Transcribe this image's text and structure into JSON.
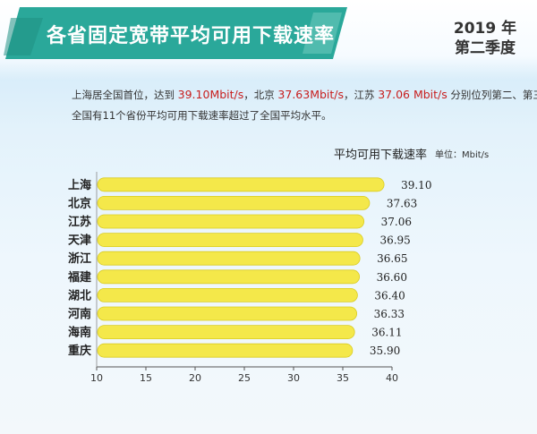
{
  "header": {
    "title": "各省固定宽带平均可用下载速率",
    "year": "2019 年",
    "quarter": "第二季度"
  },
  "description": {
    "line1_a": "上海居全国首位，达到 ",
    "line1_b": "39.10Mbit/s",
    "line1_c": "，北京 ",
    "line1_d": "37.63Mbit/s",
    "line1_e": "，江苏 ",
    "line1_f": "37.06 Mbit/s",
    "line1_g": " 分别位列第二、第三",
    "line2": "全国有11个省份平均可用下载速率超过了全国平均水平。"
  },
  "legend": {
    "label": "平均可用下载速率",
    "unit": "单位：Mbit/s"
  },
  "colors": {
    "banner": "#2aa89a",
    "bar": "#f4e84a",
    "bar_outline": "#d9cc22",
    "accent_red": "#c81e1e"
  },
  "chart_data": {
    "type": "bar",
    "orientation": "horizontal",
    "categories": [
      "上海",
      "北京",
      "江苏",
      "天津",
      "浙江",
      "福建",
      "湖北",
      "河南",
      "海南",
      "重庆"
    ],
    "values": [
      39.1,
      37.63,
      37.06,
      36.95,
      36.65,
      36.6,
      36.4,
      36.33,
      36.11,
      35.9
    ],
    "value_labels": [
      "39.10",
      "37.63",
      "37.06",
      "36.95",
      "36.65",
      "36.60",
      "36.40",
      "36.33",
      "36.11",
      "35.90"
    ],
    "xlim": [
      10,
      40
    ],
    "xticks": [
      10,
      15,
      20,
      25,
      30,
      35,
      40
    ],
    "series_name": "平均可用下载速率",
    "unit": "Mbit/s",
    "grid": false
  }
}
